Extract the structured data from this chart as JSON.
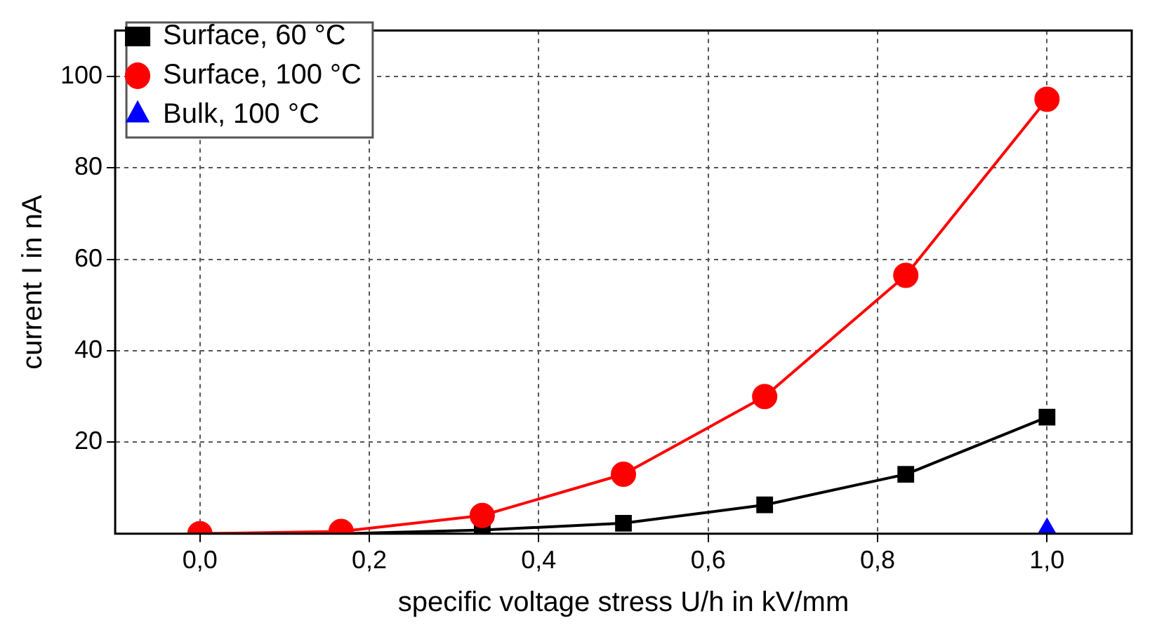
{
  "chart_data": {
    "type": "line",
    "xlabel": "specific voltage stress U/h in kV/mm",
    "ylabel": "current I in nA",
    "x": [
      0,
      0.1667,
      0.3333,
      0.5,
      0.6667,
      0.8333,
      1.0
    ],
    "series": [
      {
        "name": "Surface, 60 °C",
        "color": "#000000",
        "marker": "square",
        "values": [
          0,
          0,
          0.8,
          2.3,
          6.3,
          13,
          25.5
        ]
      },
      {
        "name": "Surface, 100 °C",
        "color": "#ff0000",
        "marker": "circle",
        "values": [
          0,
          0.5,
          4,
          13,
          30,
          56.5,
          95
        ]
      },
      {
        "name": "Bulk, 100 °C",
        "color": "#0000ff",
        "marker": "triangle",
        "x": [
          1.0
        ],
        "values": [
          0.5
        ]
      }
    ],
    "xlim": [
      -0.1,
      1.1
    ],
    "ylim": [
      0,
      110
    ],
    "xticks": [
      {
        "value": 0,
        "label": "0,0"
      },
      {
        "value": 0.2,
        "label": "0,2"
      },
      {
        "value": 0.4,
        "label": "0,4"
      },
      {
        "value": 0.6,
        "label": "0,6"
      },
      {
        "value": 0.8,
        "label": "0,8"
      },
      {
        "value": 1.0,
        "label": "1,0"
      }
    ],
    "yticks": [
      20,
      40,
      60,
      80,
      100
    ],
    "grid": true,
    "legend": "top left",
    "line_style": "solid"
  }
}
